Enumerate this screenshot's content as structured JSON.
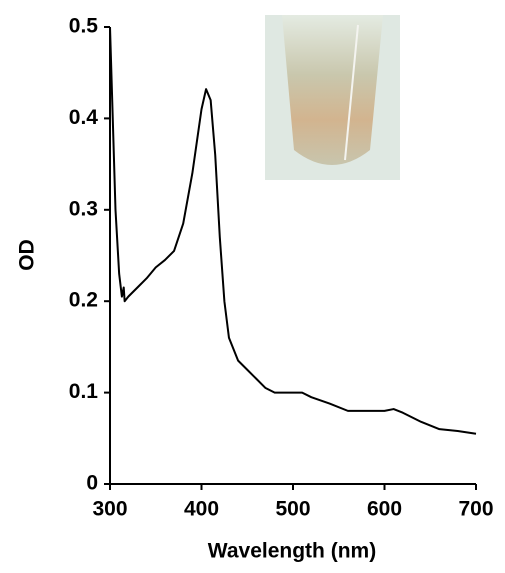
{
  "chart_data": {
    "type": "line",
    "xlabel": "Wavelength (nm)",
    "ylabel": "OD",
    "x": [
      300,
      303,
      306,
      310,
      313,
      315,
      316,
      320,
      330,
      340,
      350,
      360,
      370,
      380,
      390,
      400,
      405,
      410,
      415,
      420,
      425,
      430,
      440,
      450,
      460,
      470,
      480,
      500,
      510,
      520,
      540,
      560,
      580,
      600,
      610,
      620,
      640,
      660,
      680,
      700
    ],
    "values": [
      0.5,
      0.4,
      0.3,
      0.23,
      0.205,
      0.215,
      0.2,
      0.205,
      0.215,
      0.225,
      0.237,
      0.245,
      0.255,
      0.285,
      0.34,
      0.41,
      0.432,
      0.42,
      0.36,
      0.27,
      0.2,
      0.16,
      0.135,
      0.125,
      0.115,
      0.105,
      0.1,
      0.1,
      0.1,
      0.095,
      0.088,
      0.08,
      0.08,
      0.08,
      0.082,
      0.078,
      0.068,
      0.06,
      0.058,
      0.055
    ],
    "color": "#000000",
    "xlim": [
      300,
      700
    ],
    "xticks": [
      300,
      400,
      500,
      600,
      700
    ],
    "ylim": [
      0,
      0.5
    ],
    "yticks": [
      0,
      0.1,
      0.2,
      0.3,
      0.4,
      0.5
    ]
  }
}
